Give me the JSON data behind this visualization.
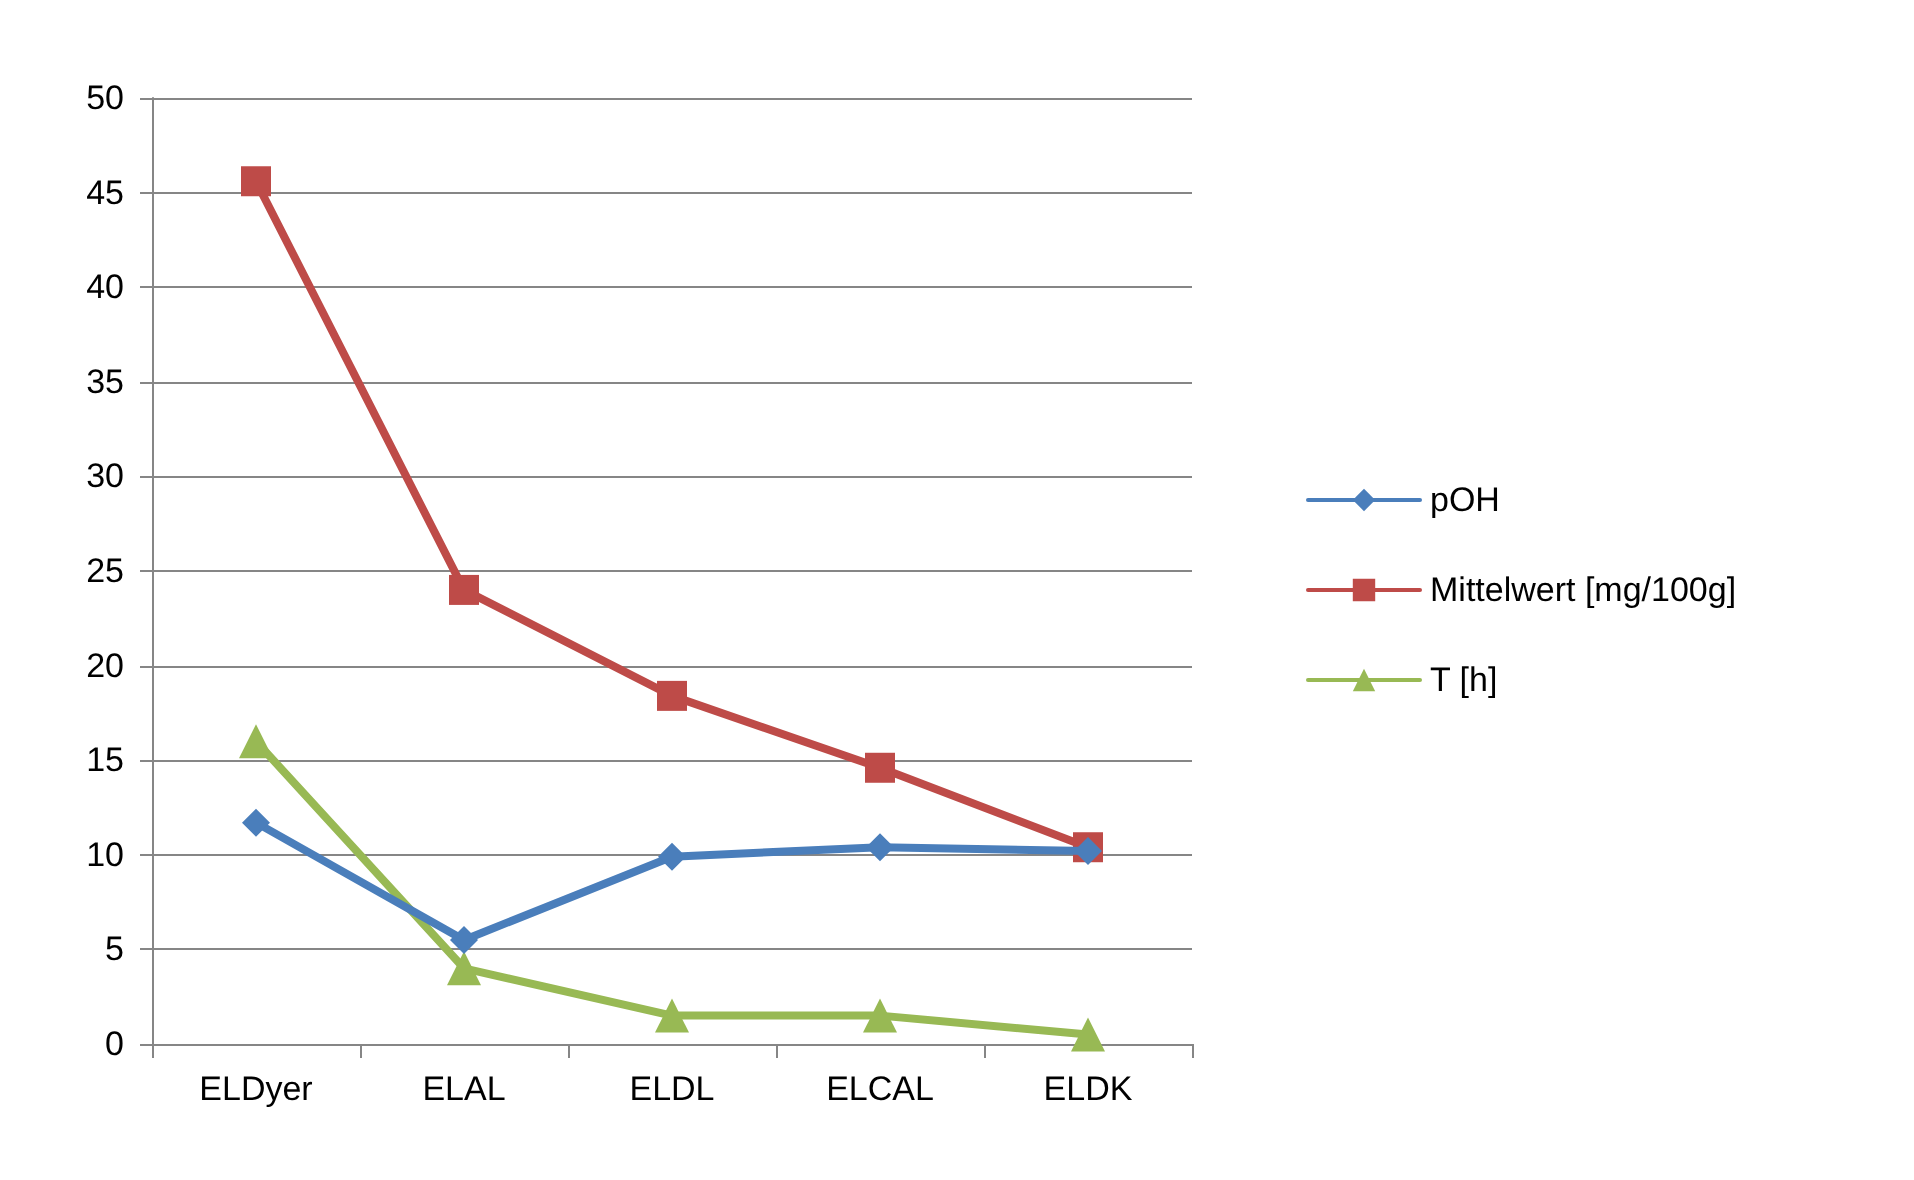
{
  "chart_data": {
    "type": "line",
    "categories": [
      "ELDyer",
      "ELAL",
      "ELDL",
      "ELCAL",
      "ELDK"
    ],
    "series": [
      {
        "name": "pOH",
        "color": "#4a7ebb",
        "marker": "diamond",
        "values": [
          11.7,
          5.5,
          9.9,
          10.4,
          10.2
        ]
      },
      {
        "name": "Mittelwert [mg/100g]",
        "color": "#be4b48",
        "marker": "square",
        "values": [
          45.6,
          24.0,
          18.4,
          14.6,
          10.4
        ]
      },
      {
        "name": "T [h]",
        "color": "#98b954",
        "marker": "triangle",
        "values": [
          16.0,
          4.0,
          1.5,
          1.5,
          0.5
        ]
      }
    ],
    "ylim": [
      0,
      50
    ],
    "yticks": [
      0,
      5,
      10,
      15,
      20,
      25,
      30,
      35,
      40,
      45,
      50
    ],
    "grid": "y",
    "legend": "right",
    "line_style": "solid"
  }
}
